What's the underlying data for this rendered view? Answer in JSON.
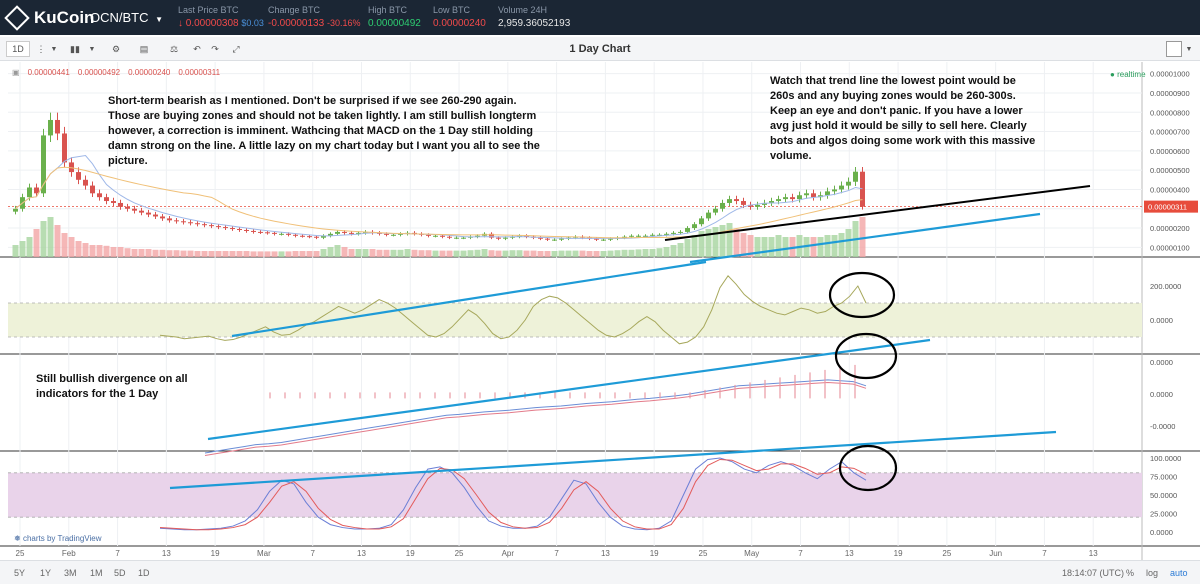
{
  "header": {
    "logo": "KuCoin",
    "pair": "OCN/BTC",
    "stats": [
      {
        "label": "Last Price BTC",
        "value": "↓ 0.00000308",
        "sub": "$0.03",
        "color": "#f04a4a"
      },
      {
        "label": "Change BTC",
        "value": "-0.00000133",
        "sub": "-30.16%",
        "color": "#f04a4a"
      },
      {
        "label": "High BTC",
        "value": "0.00000492",
        "sub": "",
        "color": "#2ecc71"
      },
      {
        "label": "Low BTC",
        "value": "0.00000240",
        "sub": "",
        "color": "#f04a4a"
      },
      {
        "label": "Volume 24H",
        "value": "2,959.36052193",
        "sub": "",
        "color": "#e6e6e6"
      }
    ]
  },
  "toolbar": {
    "interval": "1D",
    "title": "1 Day Chart"
  },
  "footer": {
    "timeframes": [
      "5Y",
      "1Y",
      "3M",
      "1M",
      "5D",
      "1D"
    ],
    "clock": "18:14:07 (UTC)",
    "percent": "%",
    "log": "log",
    "auto": "auto",
    "attribution": "charts by TradingView"
  },
  "annotations": {
    "left_top": "Short-term bearish as I mentioned. Don't be surprised if we see 260-290 again. Those are buying zones and should not be taken lightly. I am still bullish longterm however, a correction is imminent. Wathcing that MACD on the 1 Day still holding damn strong on the line. A little lazy on my chart today but I want you all to see the picture.",
    "right_top": "Watch that trend line the lowest point would be 260s and any buying zones would be 260-300s. Keep an eye and don't panic. If you have a lower avg just hold it would be silly to sell here. Clearly bots and algos doing some work with this massive volume.",
    "left_mid": "Still bullish divergence on all indicators for the 1 Day"
  },
  "chart_data": {
    "type": "candlestick",
    "title": "1 Day Chart",
    "ohlc_legend": [
      "0.00000441",
      "0.00000492",
      "0.00000240",
      "0.00000311"
    ],
    "realtime_label": "realtime",
    "x_ticks": [
      "25",
      "Feb",
      "7",
      "13",
      "19",
      "Mar",
      "7",
      "13",
      "19",
      "25",
      "Apr",
      "7",
      "13",
      "19",
      "25",
      "May",
      "7",
      "13",
      "19",
      "25",
      "Jun",
      "7",
      "13"
    ],
    "price_axis": [
      "0.00001000",
      "0.00000900",
      "0.00000800",
      "0.00000700",
      "0.00000600",
      "0.00000500",
      "0.00000400",
      "0.00000300",
      "0.00000200",
      "0.00000100"
    ],
    "last_price_label": "0.00000311",
    "last_price": 3.11,
    "price_ylim": [
      0.5,
      10.5
    ],
    "close_series": [
      3.0,
      3.6,
      4.1,
      3.8,
      6.8,
      7.6,
      6.9,
      5.4,
      4.9,
      4.5,
      4.2,
      3.8,
      3.6,
      3.4,
      3.3,
      3.1,
      3.0,
      2.9,
      2.8,
      2.7,
      2.6,
      2.5,
      2.4,
      2.35,
      2.3,
      2.25,
      2.2,
      2.15,
      2.1,
      2.05,
      2.0,
      1.95,
      1.9,
      1.85,
      1.8,
      1.78,
      1.75,
      1.7,
      1.7,
      1.65,
      1.6,
      1.58,
      1.55,
      1.5,
      1.6,
      1.7,
      1.8,
      1.75,
      1.7,
      1.75,
      1.8,
      1.75,
      1.7,
      1.65,
      1.65,
      1.7,
      1.75,
      1.7,
      1.65,
      1.6,
      1.6,
      1.55,
      1.5,
      1.5,
      1.5,
      1.55,
      1.6,
      1.7,
      1.5,
      1.45,
      1.5,
      1.55,
      1.6,
      1.55,
      1.5,
      1.45,
      1.4,
      1.4,
      1.45,
      1.5,
      1.55,
      1.5,
      1.45,
      1.4,
      1.4,
      1.45,
      1.5,
      1.55,
      1.6,
      1.6,
      1.6,
      1.65,
      1.65,
      1.7,
      1.75,
      1.8,
      2.0,
      2.2,
      2.5,
      2.8,
      3.0,
      3.3,
      3.5,
      3.4,
      3.2,
      3.1,
      3.2,
      3.3,
      3.4,
      3.5,
      3.6,
      3.5,
      3.7,
      3.8,
      3.6,
      3.7,
      3.9,
      4.0,
      4.2,
      4.4,
      4.92,
      3.11
    ],
    "volume_series": [
      0.3,
      0.4,
      0.5,
      0.7,
      0.9,
      1.0,
      0.8,
      0.6,
      0.5,
      0.4,
      0.35,
      0.3,
      0.3,
      0.28,
      0.25,
      0.25,
      0.22,
      0.2,
      0.2,
      0.2,
      0.18,
      0.18,
      0.17,
      0.17,
      0.16,
      0.16,
      0.15,
      0.15,
      0.15,
      0.15,
      0.15,
      0.15,
      0.15,
      0.15,
      0.14,
      0.14,
      0.14,
      0.14,
      0.14,
      0.14,
      0.15,
      0.15,
      0.15,
      0.15,
      0.2,
      0.25,
      0.3,
      0.25,
      0.2,
      0.2,
      0.2,
      0.2,
      0.18,
      0.18,
      0.18,
      0.18,
      0.2,
      0.18,
      0.17,
      0.17,
      0.16,
      0.16,
      0.16,
      0.16,
      0.16,
      0.17,
      0.18,
      0.2,
      0.17,
      0.16,
      0.16,
      0.17,
      0.17,
      0.16,
      0.16,
      0.15,
      0.15,
      0.15,
      0.16,
      0.16,
      0.16,
      0.16,
      0.15,
      0.15,
      0.15,
      0.16,
      0.17,
      0.18,
      0.18,
      0.19,
      0.2,
      0.2,
      0.22,
      0.25,
      0.3,
      0.35,
      0.45,
      0.55,
      0.65,
      0.7,
      0.75,
      0.8,
      0.85,
      0.7,
      0.6,
      0.55,
      0.5,
      0.5,
      0.5,
      0.55,
      0.5,
      0.5,
      0.55,
      0.5,
      0.5,
      0.5,
      0.55,
      0.55,
      0.6,
      0.7,
      0.9,
      1.0
    ],
    "cci_axis": [
      "200.0000",
      "0.0000"
    ],
    "cci_series": [
      -90,
      -95,
      -100,
      -110,
      -105,
      -100,
      -95,
      -110,
      -120,
      -115,
      -100,
      -80,
      -60,
      -40,
      -70,
      -90,
      -85,
      -60,
      -30,
      -10,
      20,
      50,
      80,
      60,
      40,
      60,
      90,
      120,
      100,
      70,
      30,
      -10,
      -50,
      -90,
      -100,
      -80,
      -40,
      10,
      60,
      30,
      -20,
      -80,
      -110,
      -100,
      -60,
      0,
      80,
      120,
      140,
      130,
      100,
      60,
      20,
      -20,
      -60,
      -90,
      -100,
      -80,
      -50,
      -10,
      20,
      -10,
      -60,
      -100,
      -140,
      -130,
      -100,
      -40,
      60,
      190,
      260,
      210,
      150,
      110,
      80,
      60,
      40,
      30,
      50,
      70,
      60,
      40,
      50,
      80,
      100,
      140,
      200,
      100
    ],
    "macd_axis": [
      "0.0000",
      "0.0000",
      "-0.0000"
    ],
    "macd_series": [
      -1.0,
      -0.95,
      -0.9,
      -0.85,
      -0.8,
      -0.78,
      -0.75,
      -0.7,
      -0.65,
      -0.6,
      -0.55,
      -0.5,
      -0.45,
      -0.4,
      -0.35,
      -0.3,
      -0.25,
      -0.2,
      -0.15,
      -0.1,
      -0.08,
      -0.05,
      -0.02,
      0.0,
      0.02,
      0.05,
      0.08,
      0.1,
      0.12,
      0.15,
      0.18,
      0.2,
      0.22,
      0.25,
      0.28,
      0.3,
      0.33,
      0.36,
      0.4,
      0.45,
      0.5,
      0.55,
      0.6,
      0.62,
      0.64,
      0.66,
      0.68,
      0.7,
      0.72,
      0.74,
      0.72,
      0.7,
      0.6
    ],
    "stoch_axis": [
      "100.0000",
      "75.0000",
      "50.0000",
      "25.0000",
      "0.0000"
    ],
    "stoch_k": [
      5,
      4,
      3,
      3,
      4,
      5,
      8,
      15,
      30,
      55,
      70,
      65,
      40,
      20,
      10,
      6,
      4,
      4,
      5,
      10,
      30,
      60,
      85,
      88,
      80,
      60,
      35,
      15,
      8,
      5,
      5,
      8,
      20,
      45,
      70,
      65,
      40,
      20,
      8,
      4,
      3,
      5,
      15,
      50,
      85,
      98,
      100,
      95,
      85,
      80,
      90,
      95,
      90,
      80,
      72,
      85,
      95,
      80,
      70
    ],
    "stoch_d": [
      6,
      5,
      4,
      3,
      3,
      4,
      6,
      10,
      20,
      40,
      62,
      68,
      55,
      32,
      17,
      9,
      6,
      4,
      4,
      7,
      18,
      45,
      72,
      86,
      84,
      72,
      50,
      27,
      13,
      7,
      5,
      6,
      13,
      32,
      57,
      68,
      55,
      32,
      15,
      7,
      4,
      4,
      10,
      32,
      68,
      90,
      98,
      97,
      90,
      83,
      85,
      92,
      92,
      86,
      78,
      80,
      88,
      86,
      78
    ],
    "grid": true
  }
}
